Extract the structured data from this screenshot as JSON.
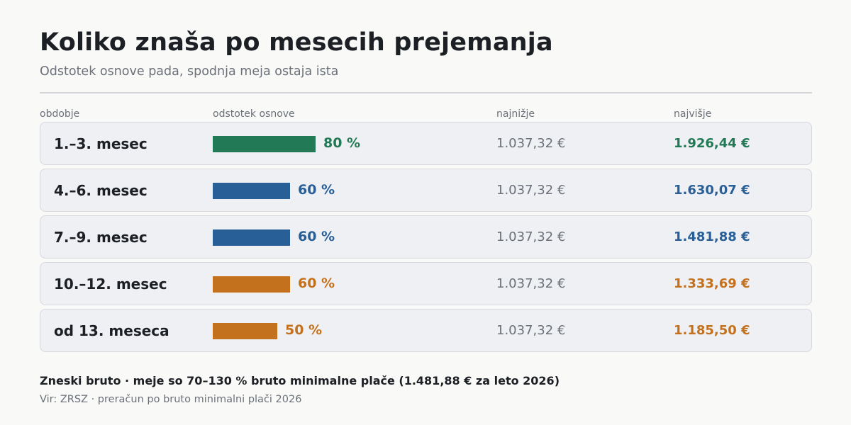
{
  "header": {
    "title": "Koliko znaša po mesecih prejemanja",
    "subtitle": "Odstotek osnove pada, spodnja meja ostaja ista"
  },
  "columns": {
    "period": "obdobje",
    "percent": "odstotek osnove",
    "min": "najnižje",
    "max": "najvišje"
  },
  "chart_data": {
    "type": "bar",
    "title": "Koliko znaša po mesecih prejemanja",
    "subtitle": "Odstotek osnove pada, spodnja meja ostaja ista",
    "categories": [
      "1.–3. mesec",
      "4.–6. mesec",
      "7.–9. mesec",
      "10.–12. mesec",
      "od 13. meseca"
    ],
    "series": [
      {
        "values": [
          80,
          60,
          60,
          60,
          50
        ]
      }
    ],
    "percent_labels": [
      "80 %",
      "60 %",
      "60 %",
      "60 %",
      "50 %"
    ],
    "min_labels": [
      "1.037,32 €",
      "1.037,32 €",
      "1.037,32 €",
      "1.037,32 €",
      "1.037,32 €"
    ],
    "max_labels": [
      "1.926,44 €",
      "1.630,07 €",
      "1.481,88 €",
      "1.333,69 €",
      "1.185,50 €"
    ],
    "colors": [
      "#217a55",
      "#285f97",
      "#285f97",
      "#c4711e",
      "#c4711e"
    ],
    "xlim": [
      0,
      100
    ],
    "grid": false
  },
  "footer": {
    "note": "Zneski bruto · meje so 70–130 % bruto minimalne plače (1.481,88 € za leto 2026)",
    "source": "Vir: ZRSZ · preračun po bruto minimalni plači 2026"
  }
}
